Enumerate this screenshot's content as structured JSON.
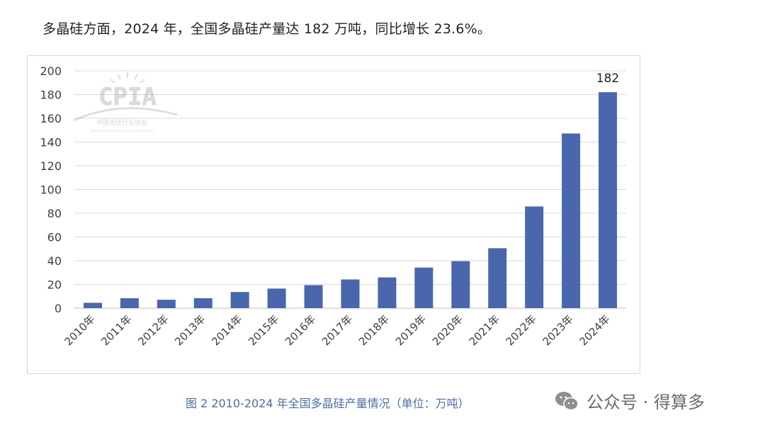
{
  "intro_text": "多晶硅方面，2024 年，全国多晶硅产量达 182 万吨，同比增长 23.6%。",
  "caption": "图 2   2010-2024 年全国多晶硅产量情况（单位：万吨）",
  "watermark": {
    "icon": "wechat-icon",
    "text": "公众号 · 得算多"
  },
  "logo": {
    "text": "CPIA",
    "subtitle_cn": "中国光伏行业协会",
    "subtitle_en": "China Photovoltaic Industry Association"
  },
  "colors": {
    "bar": "#4a66ac",
    "grid": "#d9d9d9",
    "caption": "#4a6fa5"
  },
  "chart_data": {
    "type": "bar",
    "categories": [
      "2010年",
      "2011年",
      "2012年",
      "2013年",
      "2014年",
      "2015年",
      "2016年",
      "2017年",
      "2018年",
      "2019年",
      "2020年",
      "2021年",
      "2022年",
      "2023年",
      "2024年"
    ],
    "values": [
      4.5,
      8.4,
      7.1,
      8.4,
      13.6,
      16.5,
      19.4,
      24.2,
      25.9,
      34.2,
      39.6,
      50.5,
      85.7,
      147.2,
      182
    ],
    "data_labels": {
      "2024年": "182"
    },
    "title": "",
    "xlabel": "",
    "ylabel": "",
    "ylim": [
      0,
      200
    ],
    "yticks": [
      0,
      20,
      40,
      60,
      80,
      100,
      120,
      140,
      160,
      180,
      200
    ],
    "grid": true,
    "legend": "none"
  }
}
